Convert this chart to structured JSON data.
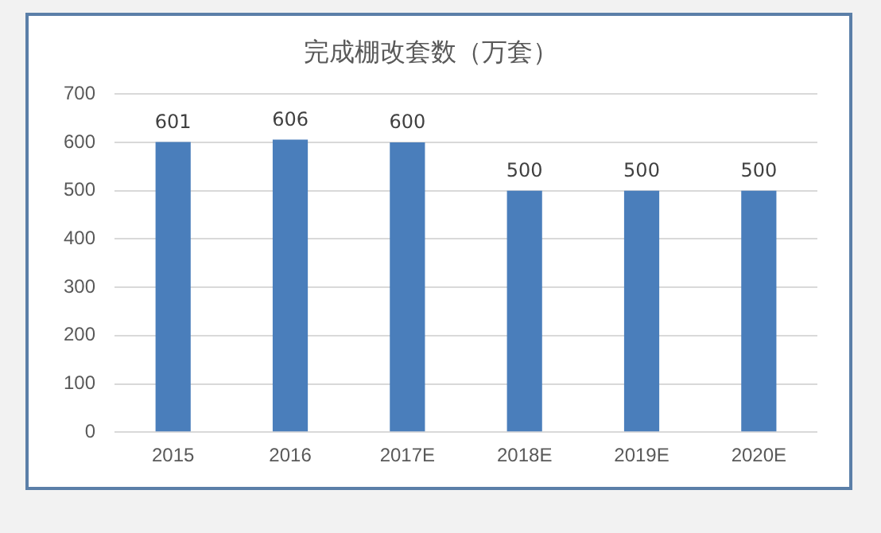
{
  "chart_data": {
    "type": "bar",
    "title": "完成棚改套数（万套）",
    "categories": [
      "2015",
      "2016",
      "2017E",
      "2018E",
      "2019E",
      "2020E"
    ],
    "values": [
      601,
      606,
      600,
      500,
      500,
      500
    ],
    "color": "#4a7ebb",
    "ylim": [
      0,
      700
    ],
    "yticks": [
      0,
      100,
      200,
      300,
      400,
      500,
      600,
      700
    ],
    "grid": "y",
    "data_labels": true
  }
}
